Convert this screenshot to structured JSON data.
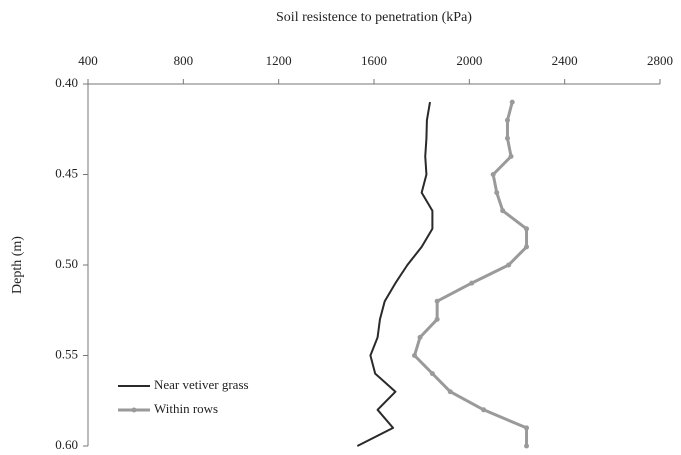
{
  "chart_data": {
    "type": "line",
    "title": "Soil resistence to penetration (kPa)",
    "y_label": "Depth (m)",
    "y": [
      0.41,
      0.42,
      0.43,
      0.44,
      0.45,
      0.46,
      0.47,
      0.48,
      0.49,
      0.5,
      0.51,
      0.52,
      0.53,
      0.54,
      0.55,
      0.56,
      0.57,
      0.58,
      0.59,
      0.6
    ],
    "series": [
      {
        "name": "Near vetiver grass",
        "color": "#2a2a2a",
        "marker": false,
        "values": [
          1835,
          1822,
          1820,
          1815,
          1820,
          1800,
          1845,
          1845,
          1800,
          1740,
          1690,
          1645,
          1625,
          1615,
          1585,
          1605,
          1690,
          1615,
          1680,
          1530
        ]
      },
      {
        "name": "Within rows",
        "color": "#9a9a9a",
        "marker": true,
        "values": [
          2180,
          2160,
          2160,
          2175,
          2100,
          2115,
          2140,
          2240,
          2240,
          2165,
          2010,
          1865,
          1865,
          1793,
          1770,
          1845,
          1920,
          2060,
          2240,
          2240
        ]
      }
    ],
    "xlim": [
      400,
      2800
    ],
    "xticks": [
      400,
      800,
      1200,
      1600,
      2000,
      2400,
      2800
    ],
    "ylim": [
      0.4,
      0.6
    ],
    "y_inverted": true,
    "yticks": [
      {
        "value": 0.4,
        "label": "0.40"
      },
      0.45,
      {
        "value": 0.5,
        "label": "0.50"
      },
      0.55,
      {
        "value": 0.6,
        "label": "0.60"
      }
    ],
    "x_axis_position": "top",
    "legend": "lower left",
    "grid": false
  }
}
